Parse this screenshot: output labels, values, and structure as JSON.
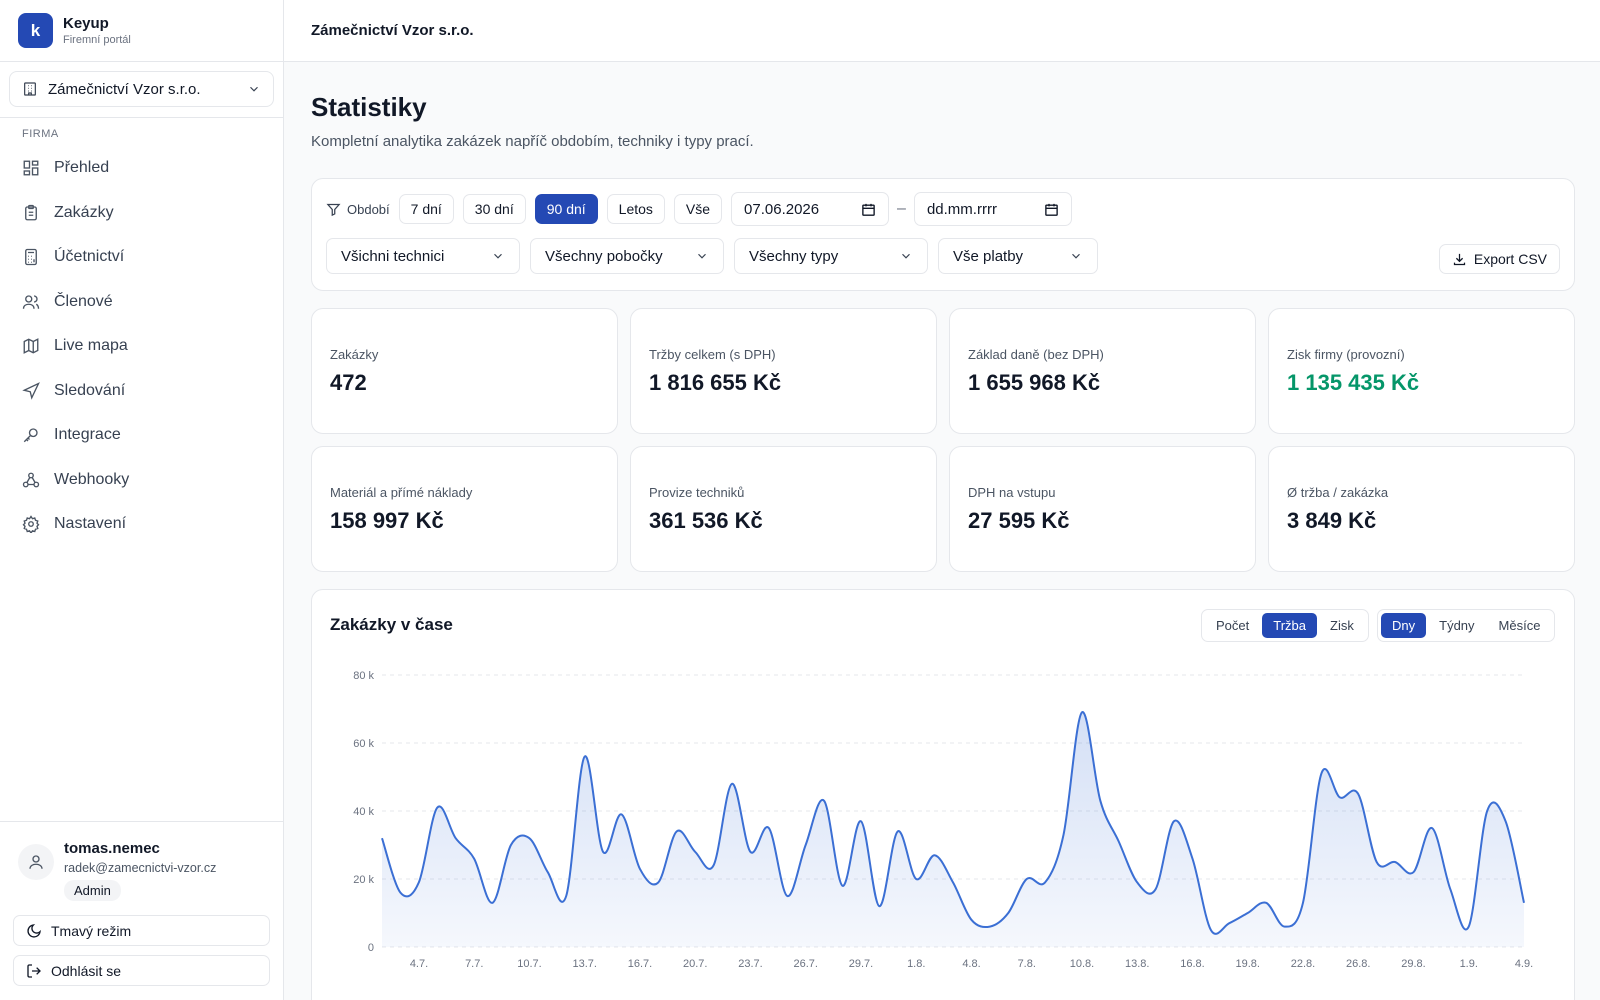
{
  "brand": {
    "name": "Keyup",
    "subtitle": "Firemní portál",
    "logo_letter": "k"
  },
  "company_select": {
    "value": "Zámečnictví Vzor s.r.o."
  },
  "sidebar": {
    "section_label": "FIRMA",
    "items": [
      {
        "label": "Přehled",
        "icon": "dashboard-icon"
      },
      {
        "label": "Zakázky",
        "icon": "clipboard-icon"
      },
      {
        "label": "Účetnictví",
        "icon": "calculator-icon"
      },
      {
        "label": "Členové",
        "icon": "users-icon"
      },
      {
        "label": "Live mapa",
        "icon": "map-icon"
      },
      {
        "label": "Sledování",
        "icon": "navigation-icon"
      },
      {
        "label": "Integrace",
        "icon": "key-icon"
      },
      {
        "label": "Webhooky",
        "icon": "webhook-icon"
      },
      {
        "label": "Nastavení",
        "icon": "gear-icon"
      }
    ]
  },
  "user": {
    "name": "tomas.nemec",
    "email": "radek@zamecnictvi-vzor.cz",
    "role": "Admin"
  },
  "side_buttons": {
    "dark_mode": "Tmavý režim",
    "logout": "Odhlásit se"
  },
  "header": {
    "company": "Zámečnictví Vzor s.r.o."
  },
  "page": {
    "title": "Statistiky",
    "subtitle": "Kompletní analytika zakázek napříč obdobím, techniky i typy prací."
  },
  "filters": {
    "label": "Období",
    "periods": [
      {
        "label": "7 dní",
        "active": false
      },
      {
        "label": "30 dní",
        "active": false
      },
      {
        "label": "90 dní",
        "active": true
      },
      {
        "label": "Letos",
        "active": false
      },
      {
        "label": "Vše",
        "active": false
      }
    ],
    "date_from": "07.06.2026",
    "date_to": "dd.mm.rrrr",
    "technicians": "Všichni technici",
    "branches": "Všechny pobočky",
    "types": "Všechny typy",
    "payments": "Vše platby",
    "export": "Export CSV"
  },
  "kpis": [
    {
      "label": "Zakázky",
      "value": "472",
      "highlight": false
    },
    {
      "label": "Tržby celkem (s DPH)",
      "value": "1 816 655 Kč",
      "highlight": false
    },
    {
      "label": "Základ daně (bez DPH)",
      "value": "1 655 968 Kč",
      "highlight": false
    },
    {
      "label": "Zisk firmy (provozní)",
      "value": "1 135 435 Kč",
      "highlight": true
    },
    {
      "label": "Materiál a přímé náklady",
      "value": "158 997 Kč",
      "highlight": false
    },
    {
      "label": "Provize techniků",
      "value": "361 536 Kč",
      "highlight": false
    },
    {
      "label": "DPH na vstupu",
      "value": "27 595 Kč",
      "highlight": false
    },
    {
      "label": "Ø tržba / zakázka",
      "value": "3 849 Kč",
      "highlight": false
    }
  ],
  "chart_section": {
    "title": "Zakázky v čase",
    "metric_toggle": [
      {
        "label": "Počet",
        "active": false
      },
      {
        "label": "Tržba",
        "active": true
      },
      {
        "label": "Zisk",
        "active": false
      }
    ],
    "granularity_toggle": [
      {
        "label": "Dny",
        "active": true
      },
      {
        "label": "Týdny",
        "active": false
      },
      {
        "label": "Měsíce",
        "active": false
      }
    ]
  },
  "colors": {
    "accent": "#2449b4",
    "line": "#3b6fd4",
    "profit": "#059669"
  },
  "chart_data": {
    "type": "area",
    "ylim": [
      0,
      80000
    ],
    "y_ticks": [
      0,
      20000,
      40000,
      60000,
      80000
    ],
    "y_tick_labels": [
      "0",
      "20 k",
      "40 k",
      "60 k",
      "80 k"
    ],
    "x_tick_labels": [
      "4.7.",
      "7.7.",
      "10.7.",
      "13.7.",
      "16.7.",
      "20.7.",
      "23.7.",
      "26.7.",
      "29.7.",
      "1.8.",
      "4.8.",
      "7.8.",
      "10.8.",
      "13.8.",
      "16.8.",
      "19.8.",
      "22.8.",
      "26.8.",
      "29.8.",
      "1.9.",
      "4.9."
    ],
    "grid": "horizontal-dashed",
    "values": [
      32000,
      16000,
      19000,
      41000,
      32000,
      26000,
      13000,
      30000,
      32000,
      22000,
      15000,
      56000,
      28000,
      39000,
      23000,
      19000,
      34000,
      28000,
      24000,
      48000,
      28000,
      35000,
      15000,
      30000,
      43000,
      18000,
      37000,
      12000,
      34000,
      20000,
      27000,
      19000,
      8000,
      6000,
      10000,
      20000,
      19000,
      33000,
      69000,
      43000,
      31000,
      19000,
      17000,
      37000,
      26000,
      5000,
      7000,
      10000,
      13000,
      6000,
      13000,
      51000,
      44000,
      45000,
      25000,
      25000,
      22000,
      35000,
      17000,
      6000,
      40000,
      37000,
      13000
    ]
  }
}
